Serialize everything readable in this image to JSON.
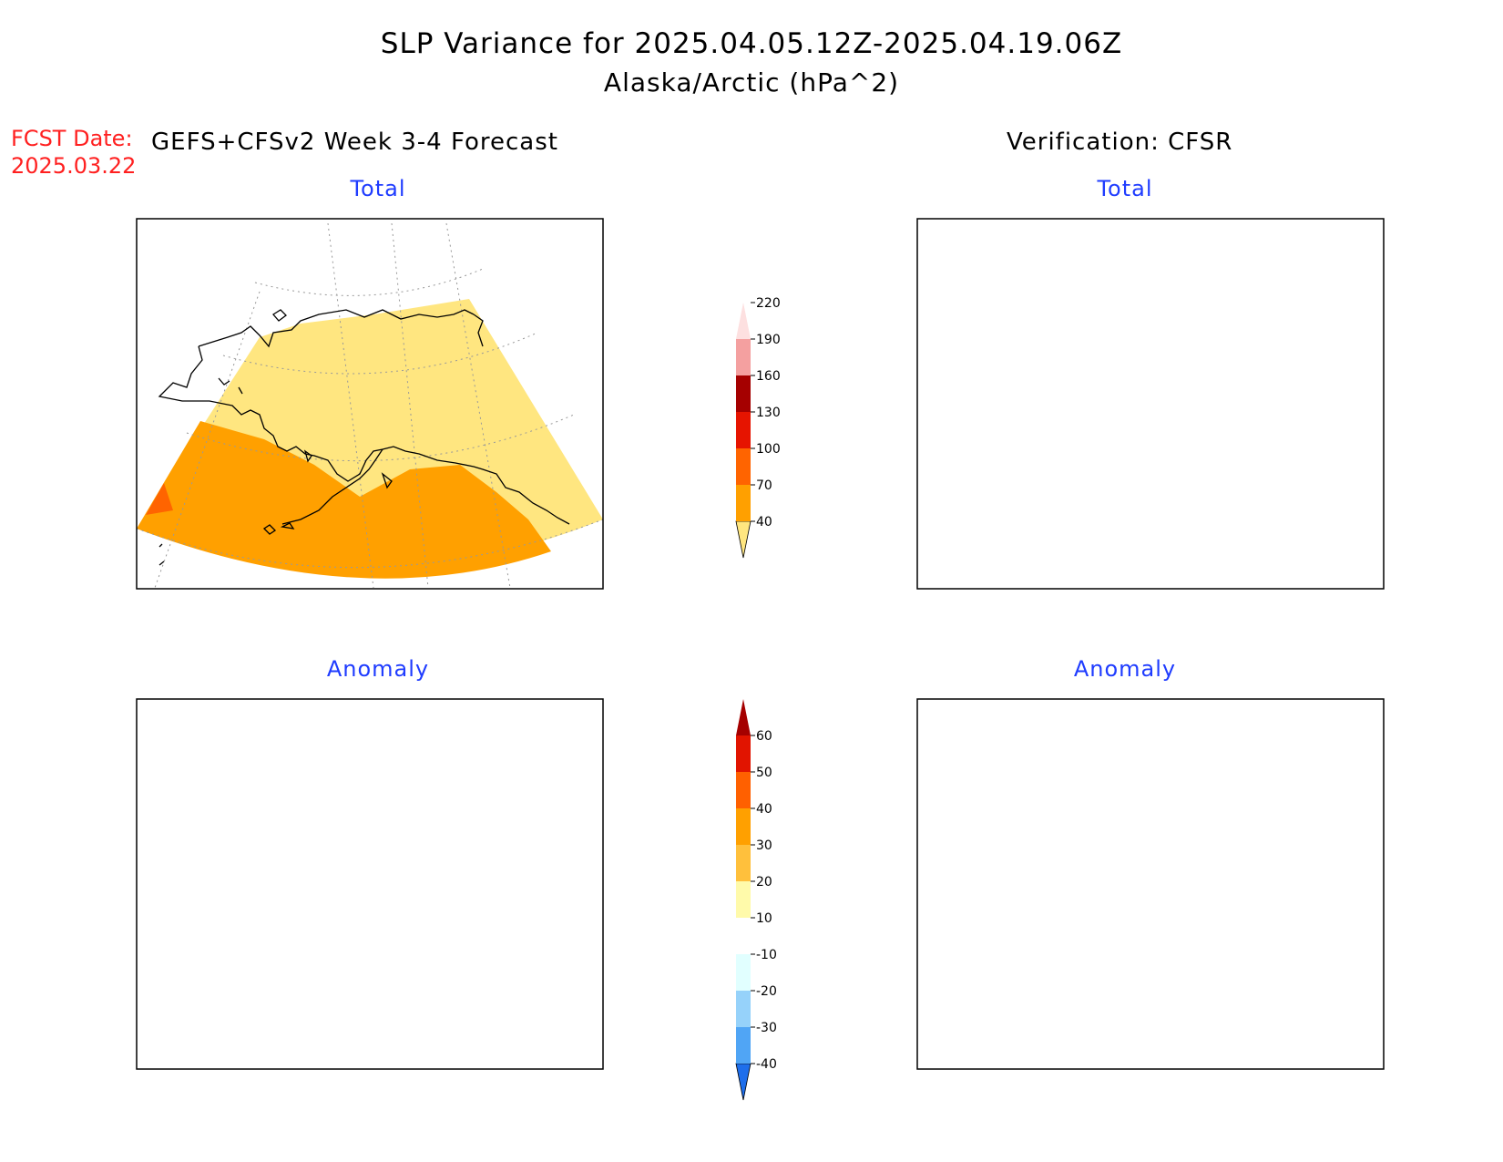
{
  "header": {
    "title": "SLP Variance for 2025.04.05.12Z-2025.04.19.06Z",
    "subtitle": "Alaska/Arctic (hPa^2)",
    "fcst_label": "FCST Date:",
    "fcst_date": "2025.03.22",
    "left_heading": "GEFS+CFSv2 Week 3-4 Forecast",
    "right_heading": "Verification: CFSR"
  },
  "panels": {
    "forecast_total": "Total",
    "verification_total": "Total",
    "forecast_anomaly": "Anomaly",
    "verification_anomaly": "Anomaly"
  },
  "colorbars": {
    "total": {
      "labels": [
        "40",
        "70",
        "100",
        "130",
        "160",
        "190",
        "220"
      ],
      "colors": [
        "#ffe680",
        "#ffa000",
        "#ff6400",
        "#e61400",
        "#a50000",
        "#f4a0a0",
        "#fde0e0"
      ]
    },
    "anomaly": {
      "labels": [
        "-40",
        "-30",
        "-20",
        "-10",
        "10",
        "20",
        "30",
        "40",
        "50",
        "60"
      ],
      "colors": [
        "#1e6eeb",
        "#50a5f5",
        "#96d2fa",
        "#e1ffff",
        "#ffffff",
        "#fffaaa",
        "#ffc03c",
        "#ffa000",
        "#ff6000",
        "#e11400",
        "#a50000"
      ]
    }
  }
}
